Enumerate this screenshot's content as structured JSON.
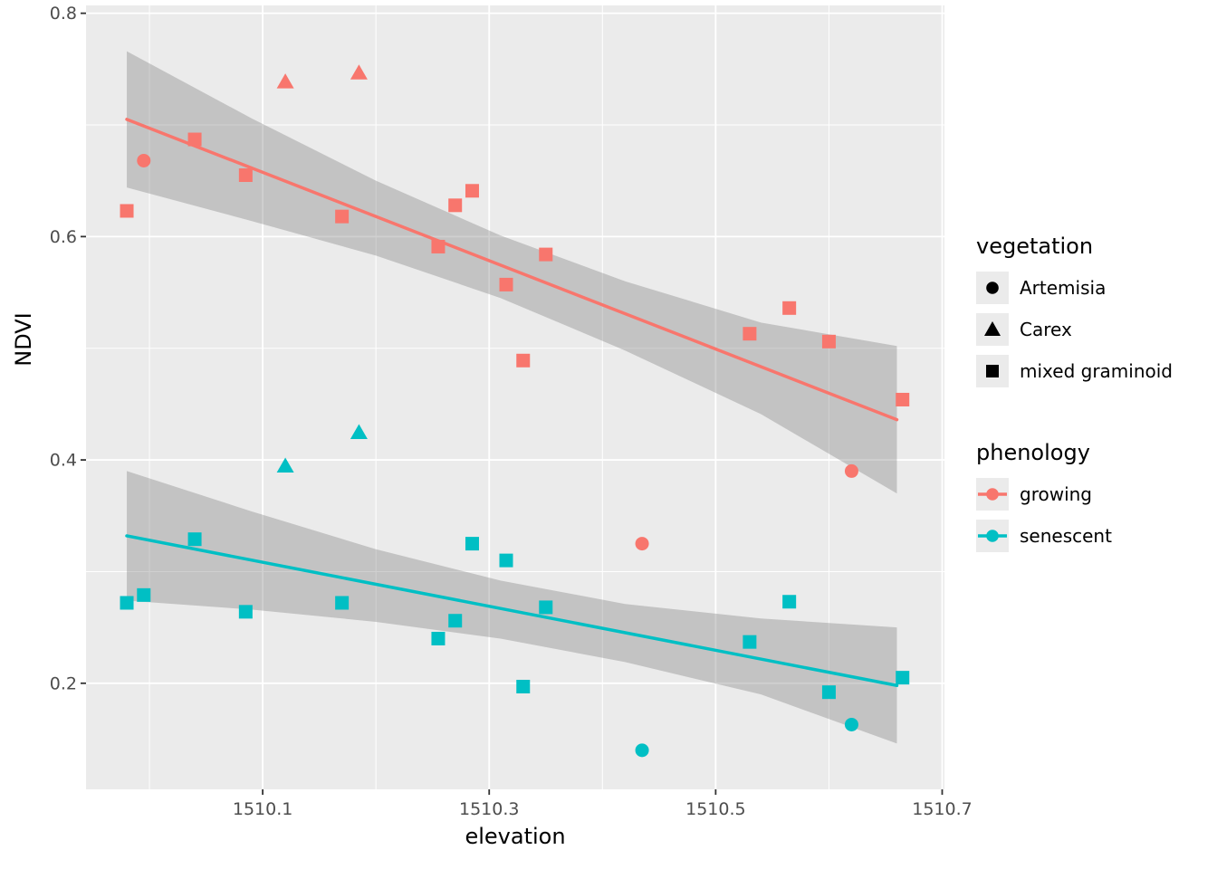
{
  "chart_data": {
    "type": "scatter",
    "title": "",
    "xlabel": "elevation",
    "ylabel": "NDVI",
    "xlim": [
      1509.944,
      1510.702
    ],
    "ylim": [
      0.105,
      0.807
    ],
    "x_ticks": {
      "values": [
        1510.1,
        1510.3,
        1510.5,
        1510.7
      ],
      "labels": [
        "1510.1",
        "1510.3",
        "1510.5",
        "1510.7"
      ]
    },
    "y_ticks": {
      "values": [
        0.2,
        0.4,
        0.6,
        0.8
      ],
      "labels": [
        "0.2",
        "0.4",
        "0.6",
        "0.8"
      ]
    },
    "x_minor": [
      1510.0,
      1510.2,
      1510.4,
      1510.6
    ],
    "y_minor": [
      0.3,
      0.5,
      0.7
    ],
    "grid": true,
    "panel_bg": "#EBEBEB",
    "grid_color": "#FFFFFF",
    "band_color": "rgba(120,120,120,0.35)",
    "legend_position": "right",
    "shape_legend": {
      "circle": "Artemisia",
      "triangle": "Carex",
      "square": "mixed graminoid"
    },
    "series": [
      {
        "name": "growing",
        "color": "#F8766D",
        "regression": {
          "x": [
            1509.98,
            1510.66
          ],
          "y": [
            0.705,
            0.436
          ]
        },
        "band": [
          [
            1509.98,
            0.644,
            0.766
          ],
          [
            1510.09,
            0.614,
            0.706
          ],
          [
            1510.2,
            0.583,
            0.65
          ],
          [
            1510.31,
            0.545,
            0.601
          ],
          [
            1510.42,
            0.498,
            0.56
          ],
          [
            1510.54,
            0.441,
            0.523
          ],
          [
            1510.66,
            0.37,
            0.502
          ]
        ],
        "points": [
          [
            1509.98,
            0.623,
            "square"
          ],
          [
            1509.995,
            0.668,
            "circle"
          ],
          [
            1510.04,
            0.687,
            "square"
          ],
          [
            1510.085,
            0.655,
            "square"
          ],
          [
            1510.12,
            0.738,
            "triangle"
          ],
          [
            1510.17,
            0.618,
            "square"
          ],
          [
            1510.185,
            0.746,
            "triangle"
          ],
          [
            1510.255,
            0.591,
            "square"
          ],
          [
            1510.27,
            0.628,
            "square"
          ],
          [
            1510.285,
            0.641,
            "square"
          ],
          [
            1510.315,
            0.557,
            "square"
          ],
          [
            1510.33,
            0.489,
            "square"
          ],
          [
            1510.35,
            0.584,
            "square"
          ],
          [
            1510.435,
            0.325,
            "circle"
          ],
          [
            1510.53,
            0.513,
            "square"
          ],
          [
            1510.565,
            0.536,
            "square"
          ],
          [
            1510.6,
            0.506,
            "square"
          ],
          [
            1510.62,
            0.39,
            "circle"
          ],
          [
            1510.665,
            0.454,
            "square"
          ]
        ]
      },
      {
        "name": "senescent",
        "color": "#00BFC4",
        "regression": {
          "x": [
            1509.98,
            1510.66
          ],
          "y": [
            0.332,
            0.198
          ]
        },
        "band": [
          [
            1509.98,
            0.274,
            0.39
          ],
          [
            1510.09,
            0.266,
            0.354
          ],
          [
            1510.2,
            0.255,
            0.32
          ],
          [
            1510.31,
            0.24,
            0.292
          ],
          [
            1510.42,
            0.219,
            0.271
          ],
          [
            1510.54,
            0.19,
            0.258
          ],
          [
            1510.66,
            0.146,
            0.25
          ]
        ],
        "points": [
          [
            1509.98,
            0.272,
            "square"
          ],
          [
            1509.995,
            0.279,
            "square"
          ],
          [
            1510.04,
            0.329,
            "square"
          ],
          [
            1510.085,
            0.264,
            "square"
          ],
          [
            1510.12,
            0.394,
            "triangle"
          ],
          [
            1510.17,
            0.272,
            "square"
          ],
          [
            1510.185,
            0.424,
            "triangle"
          ],
          [
            1510.255,
            0.24,
            "square"
          ],
          [
            1510.27,
            0.256,
            "square"
          ],
          [
            1510.285,
            0.325,
            "square"
          ],
          [
            1510.315,
            0.31,
            "square"
          ],
          [
            1510.33,
            0.197,
            "square"
          ],
          [
            1510.35,
            0.268,
            "square"
          ],
          [
            1510.435,
            0.14,
            "circle"
          ],
          [
            1510.53,
            0.237,
            "square"
          ],
          [
            1510.565,
            0.273,
            "square"
          ],
          [
            1510.6,
            0.192,
            "square"
          ],
          [
            1510.62,
            0.163,
            "circle"
          ],
          [
            1510.665,
            0.205,
            "square"
          ]
        ]
      }
    ]
  },
  "legend": {
    "vegetation": {
      "title": "vegetation",
      "items": [
        {
          "label": "Artemisia",
          "shape": "circle"
        },
        {
          "label": "Carex",
          "shape": "triangle"
        },
        {
          "label": "mixed graminoid",
          "shape": "square"
        }
      ]
    },
    "phenology": {
      "title": "phenology",
      "items": [
        {
          "label": "growing",
          "color": "#F8766D"
        },
        {
          "label": "senescent",
          "color": "#00BFC4"
        }
      ]
    }
  }
}
